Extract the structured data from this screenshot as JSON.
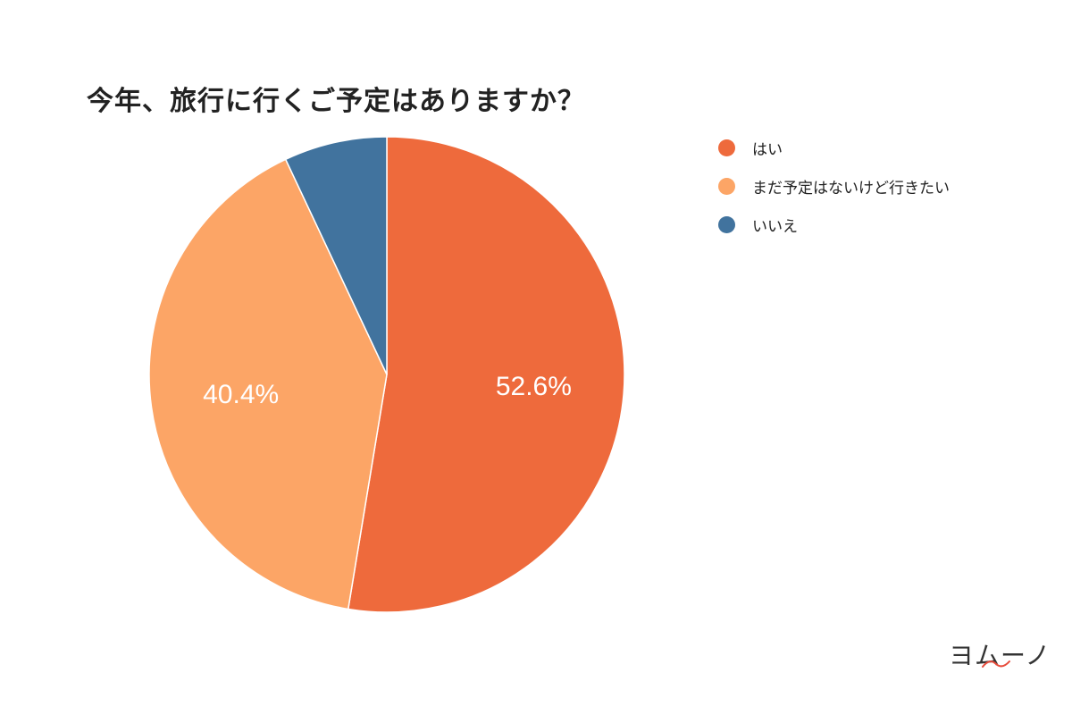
{
  "chart_data": {
    "type": "pie",
    "title": "今年、旅行に行くご予定はありますか？",
    "categories": [
      "はい",
      "まだ予定はないけど行きたい",
      "いいえ"
    ],
    "values": [
      52.6,
      40.4,
      7.0
    ],
    "data_labels": [
      "52.6%",
      "40.4%",
      ""
    ],
    "colors": [
      "#ee6a3c",
      "#fca566",
      "#41739e"
    ],
    "legend_placement": "right"
  },
  "watermark": {
    "text": "ヨムーノ",
    "accent_color": "#e74c3c"
  }
}
